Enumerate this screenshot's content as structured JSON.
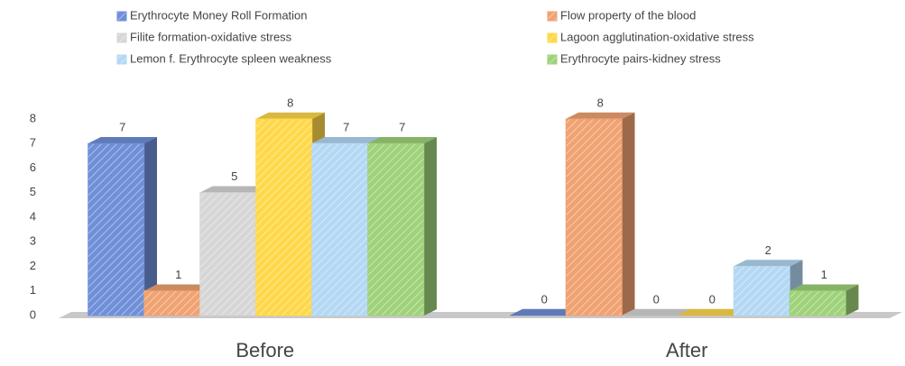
{
  "chart_data": {
    "type": "bar3d",
    "categories": [
      "Before",
      "After"
    ],
    "series": [
      {
        "name": "Erythrocyte Money Roll Formation",
        "color": "#6f8fd8",
        "values": [
          7,
          0
        ]
      },
      {
        "name": "Flow property of the blood",
        "color": "#f0a272",
        "values": [
          1,
          8
        ]
      },
      {
        "name": "Filite formation-oxidative stress",
        "color": "#d6d6d6",
        "values": [
          5,
          0
        ]
      },
      {
        "name": "Lagoon agglutination-oxidative stress",
        "color": "#ffd84a",
        "values": [
          8,
          0
        ]
      },
      {
        "name": "Lemon f. Erythrocyte spleen weakness",
        "color": "#b4d8f4",
        "values": [
          7,
          2
        ]
      },
      {
        "name": "Erythrocyte pairs-kidney stress",
        "color": "#9fd27a",
        "values": [
          7,
          1
        ]
      }
    ],
    "ylim": [
      0,
      8
    ],
    "yticks": [
      0,
      1,
      2,
      3,
      4,
      5,
      6,
      7,
      8
    ],
    "legend": "top",
    "grid": false
  }
}
